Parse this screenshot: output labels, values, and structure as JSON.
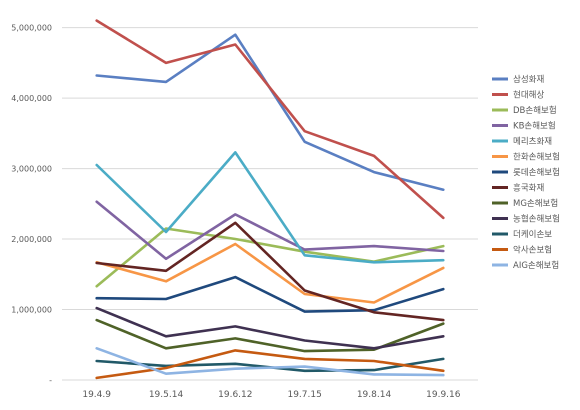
{
  "chart_data": {
    "type": "line",
    "title": "",
    "xlabel": "",
    "ylabel": "",
    "categories": [
      "19.4.9",
      "19.5.14",
      "19.6.12",
      "19.7.15",
      "19.8.14",
      "19.9.16"
    ],
    "ylim": [
      0,
      5250000
    ],
    "yticks": [
      {
        "value": 0,
        "label": "-"
      },
      {
        "value": 1000000,
        "label": "1,000,000"
      },
      {
        "value": 2000000,
        "label": "2,000,000"
      },
      {
        "value": 3000000,
        "label": "3,000,000"
      },
      {
        "value": 4000000,
        "label": "4,000,000"
      },
      {
        "value": 5000000,
        "label": "5,000,000"
      }
    ],
    "grid": true,
    "legend_position": "right",
    "series": [
      {
        "name": "삼성화재",
        "color": "#5a7fc2",
        "values": [
          4320000,
          4230000,
          4900000,
          3380000,
          2950000,
          2700000
        ]
      },
      {
        "name": "현대해상",
        "color": "#c0504d",
        "values": [
          5100000,
          4500000,
          4760000,
          3530000,
          3180000,
          2300000
        ]
      },
      {
        "name": "DB손해보험",
        "color": "#9bbb59",
        "values": [
          1330000,
          2150000,
          2000000,
          1820000,
          1680000,
          1900000
        ]
      },
      {
        "name": "KB손해보험",
        "color": "#8064a2",
        "values": [
          2530000,
          1720000,
          2350000,
          1850000,
          1900000,
          1830000
        ]
      },
      {
        "name": "메리츠화재",
        "color": "#4bacc6",
        "values": [
          3050000,
          2100000,
          3230000,
          1770000,
          1670000,
          1700000
        ]
      },
      {
        "name": "한화손해보험",
        "color": "#f79646",
        "values": [
          1670000,
          1400000,
          1930000,
          1220000,
          1100000,
          1590000
        ]
      },
      {
        "name": "롯데손해보험",
        "color": "#1f497d",
        "values": [
          1160000,
          1150000,
          1460000,
          970000,
          990000,
          1290000
        ]
      },
      {
        "name": "흥국화재",
        "color": "#632523",
        "values": [
          1660000,
          1550000,
          2230000,
          1270000,
          960000,
          850000
        ]
      },
      {
        "name": "MG손해보험",
        "color": "#4f6228",
        "values": [
          850000,
          450000,
          590000,
          410000,
          430000,
          800000
        ]
      },
      {
        "name": "농협손해보험",
        "color": "#3f3151",
        "values": [
          1020000,
          620000,
          760000,
          560000,
          450000,
          620000
        ]
      },
      {
        "name": "더케이손보",
        "color": "#215968",
        "values": [
          270000,
          200000,
          230000,
          130000,
          140000,
          300000
        ]
      },
      {
        "name": "악사손보험",
        "color": "#c55a11",
        "values": [
          30000,
          170000,
          420000,
          300000,
          270000,
          130000
        ]
      },
      {
        "name": "AIG손해보험",
        "color": "#8eb4e3",
        "values": [
          450000,
          90000,
          160000,
          190000,
          80000,
          70000
        ]
      }
    ]
  }
}
